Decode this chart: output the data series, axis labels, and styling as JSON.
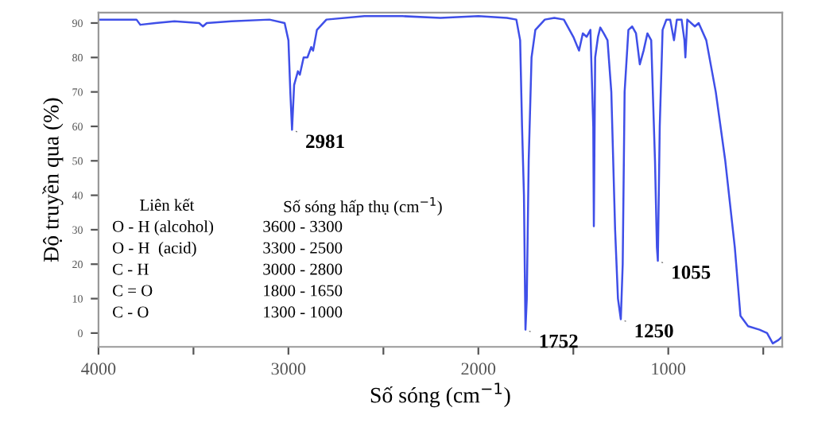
{
  "chart_data": {
    "type": "line",
    "xlabel": "Số sóng (cm$^{−1}$)",
    "ylabel": "Độ truyền qua (%)",
    "xlim": [
      4000,
      400
    ],
    "ylim": [
      -4,
      93
    ],
    "xticks": [
      4000,
      {
        "value": 3500,
        "label": null
      },
      3000,
      {
        "value": 2500,
        "label": null
      },
      2000,
      {
        "value": 1500,
        "label": null
      },
      1000,
      {
        "value": 500,
        "label": null
      }
    ],
    "yticks": [
      0,
      10,
      20,
      30,
      40,
      50,
      60,
      70,
      80,
      90
    ],
    "grid": false,
    "legend": false,
    "marker": "none",
    "line_style": "solid",
    "series": [
      {
        "color": "#3f4fe8",
        "x": [
          4000,
          3900,
          3800,
          3780,
          3700,
          3600,
          3470,
          3450,
          3430,
          3300,
          3100,
          3020,
          3000,
          2990,
          2981,
          2970,
          2950,
          2940,
          2920,
          2900,
          2880,
          2870,
          2850,
          2800,
          2600,
          2400,
          2200,
          2000,
          1850,
          1800,
          1780,
          1770,
          1760,
          1752,
          1745,
          1735,
          1720,
          1700,
          1650,
          1600,
          1550,
          1500,
          1470,
          1450,
          1430,
          1410,
          1395,
          1392,
          1385,
          1370,
          1358,
          1340,
          1320,
          1300,
          1280,
          1265,
          1250,
          1240,
          1230,
          1210,
          1190,
          1170,
          1150,
          1130,
          1110,
          1090,
          1070,
          1060,
          1055,
          1045,
          1030,
          1010,
          990,
          970,
          955,
          930,
          915,
          910,
          900,
          860,
          840,
          800,
          750,
          700,
          650,
          620,
          580,
          520,
          480,
          450,
          420,
          400
        ],
        "values": [
          91,
          91,
          91,
          89.5,
          90,
          90.5,
          90,
          89,
          90,
          90.5,
          91,
          90,
          85,
          70,
          59,
          72,
          76,
          75,
          80,
          80,
          83,
          82,
          88,
          91,
          92,
          92,
          91.5,
          92,
          91.5,
          91,
          85,
          60,
          40,
          1,
          10,
          50,
          80,
          88,
          91,
          91.5,
          91,
          86,
          82,
          87,
          86,
          88,
          60,
          31,
          80,
          86,
          88.7,
          87,
          85,
          70,
          30,
          10,
          4,
          20,
          70,
          88,
          89,
          87,
          78,
          82,
          87,
          85,
          50,
          25,
          21,
          60,
          88,
          91,
          91,
          85,
          91,
          91,
          85,
          80,
          91,
          89,
          90,
          85,
          70,
          50,
          25,
          5,
          2,
          1,
          0,
          -3,
          -2,
          -1
        ]
      }
    ],
    "annotations": [
      {
        "text": "2981",
        "x": 2981,
        "y": 59
      },
      {
        "text": "1752",
        "x": 1752,
        "y": 1
      },
      {
        "text": "1250",
        "x": 1250,
        "y": 4
      },
      {
        "text": "1055",
        "x": 1055,
        "y": 21
      },
      "Liên kết",
      "Số sóng hấp thụ (cm$^{−1}$)",
      "O - H (alcohol)",
      "3600 - 3300",
      "O - H  (acid)",
      "3300 - 2500",
      "C - H",
      "3000 - 2800",
      "C = O",
      "1800 - 1650",
      "C - O",
      "1300 - 1000"
    ]
  }
}
